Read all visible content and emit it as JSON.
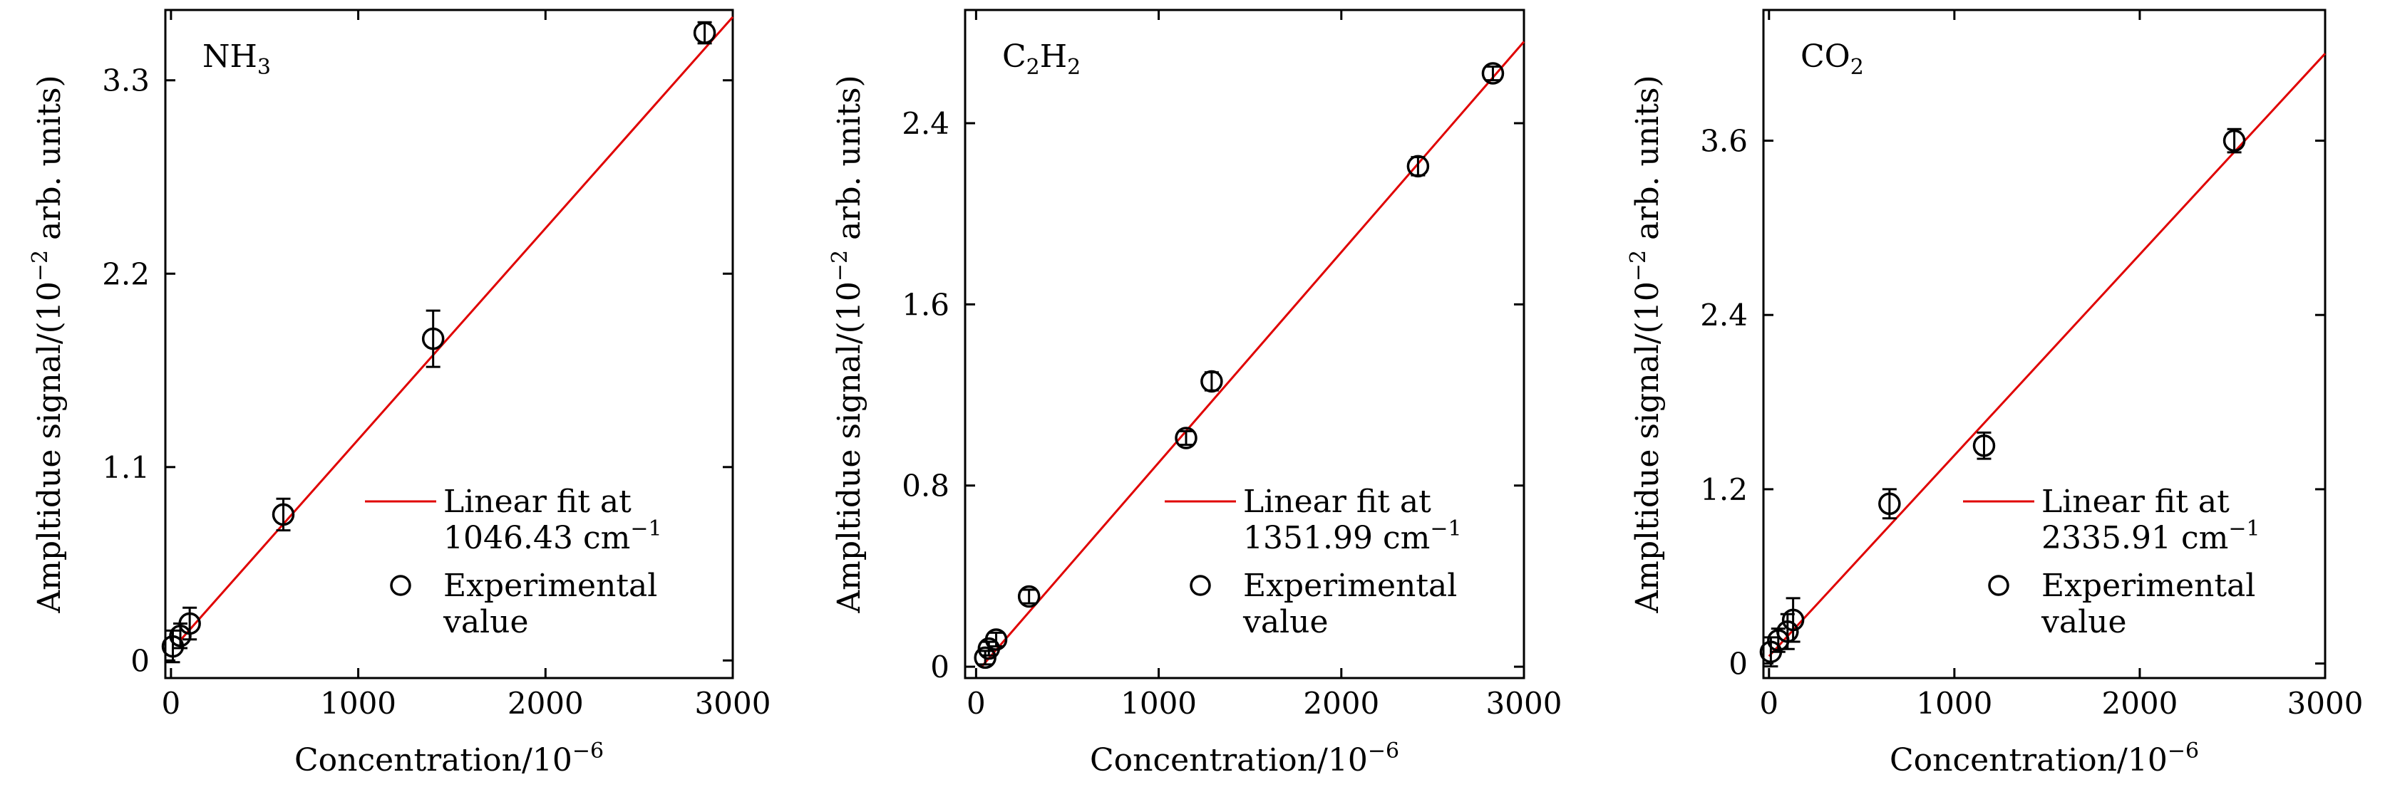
{
  "figure_label": "Three calibration plots",
  "chart_data": [
    {
      "type": "scatter",
      "gas": {
        "main": "NH",
        "sub": "3",
        "rest": ""
      },
      "xlabel": {
        "text": "Concentration/10",
        "sup": "−6"
      },
      "ylabel": {
        "text": "Ampltidue  signal/(10",
        "sup": "−2",
        "rest": " arb. units)"
      },
      "xlim": [
        -30,
        3000
      ],
      "ylim": [
        -0.1,
        3.7
      ],
      "xticks": [
        0,
        1000,
        2000,
        3000
      ],
      "xtick_labels": [
        "0",
        "1000",
        "2000",
        "3000"
      ],
      "yticks": [
        0,
        1.1,
        2.2,
        3.3
      ],
      "ytick_labels": [
        "0",
        "1.1",
        "2.2",
        "3.3"
      ],
      "points": [
        {
          "x": 10,
          "y": 0.08,
          "err": 0.09
        },
        {
          "x": 50,
          "y": 0.14,
          "err": 0.07
        },
        {
          "x": 100,
          "y": 0.21,
          "err": 0.09
        },
        {
          "x": 600,
          "y": 0.83,
          "err": 0.09
        },
        {
          "x": 1400,
          "y": 1.83,
          "err": 0.16
        },
        {
          "x": 2850,
          "y": 3.57,
          "err": 0.06
        }
      ],
      "fit": {
        "x0": 50,
        "y0": 0.115,
        "x1": 3000,
        "y1": 3.66
      },
      "legend": {
        "line1": "Linear fit at",
        "line2_value": "1046.43 cm",
        "line2_sup": "−1",
        "exp1": "Experimental",
        "exp2": "value"
      }
    },
    {
      "type": "scatter",
      "gas": {
        "main": "C",
        "sub": "2",
        "rest": "H",
        "sub2": "2"
      },
      "xlabel": {
        "text": "Concentration/10",
        "sup": "−6"
      },
      "ylabel": {
        "text": "Ampltidue  signal/(10",
        "sup": "−2",
        "rest": " arb. units)"
      },
      "xlim": [
        -60,
        3000
      ],
      "ylim": [
        -0.05,
        2.9
      ],
      "xticks": [
        0,
        1000,
        2000,
        3000
      ],
      "xtick_labels": [
        "0",
        "1000",
        "2000",
        "3000"
      ],
      "yticks": [
        0,
        0.8,
        1.6,
        2.4
      ],
      "ytick_labels": [
        "0",
        "0.8",
        "1.6",
        "2.4"
      ],
      "points": [
        {
          "x": 50,
          "y": 0.04,
          "err": 0.03
        },
        {
          "x": 70,
          "y": 0.08,
          "err": 0.03
        },
        {
          "x": 110,
          "y": 0.12,
          "err": 0.03
        },
        {
          "x": 290,
          "y": 0.31,
          "err": 0.03
        },
        {
          "x": 1150,
          "y": 1.01,
          "err": 0.03
        },
        {
          "x": 1290,
          "y": 1.26,
          "err": 0.04
        },
        {
          "x": 2420,
          "y": 2.21,
          "err": 0.04
        },
        {
          "x": 2830,
          "y": 2.62,
          "err": 0.03
        }
      ],
      "fit": {
        "x0": 30,
        "y0": 0.0,
        "x1": 3000,
        "y1": 2.76
      },
      "legend": {
        "line1": "Linear fit at",
        "line2_value": "1351.99 cm",
        "line2_sup": "−1",
        "exp1": "Experimental",
        "exp2": "value"
      }
    },
    {
      "type": "scatter",
      "gas": {
        "main": "CO",
        "sub": "2",
        "rest": ""
      },
      "xlabel": {
        "text": "Concentration/10",
        "sup": "−6"
      },
      "ylabel": {
        "text": "Ampltidue  signal/(10",
        "sup": "−2",
        "rest": " arb. units)"
      },
      "xlim": [
        -30,
        3000
      ],
      "ylim": [
        -0.1,
        4.5
      ],
      "xticks": [
        0,
        1000,
        2000,
        3000
      ],
      "xtick_labels": [
        "0",
        "1000",
        "2000",
        "3000"
      ],
      "yticks": [
        0,
        1.2,
        2.4,
        3.6
      ],
      "ytick_labels": [
        "0",
        "1.2",
        "2.4",
        "3.6"
      ],
      "points": [
        {
          "x": 10,
          "y": 0.08,
          "err": 0.1
        },
        {
          "x": 50,
          "y": 0.16,
          "err": 0.08
        },
        {
          "x": 100,
          "y": 0.22,
          "err": 0.12
        },
        {
          "x": 130,
          "y": 0.3,
          "err": 0.15
        },
        {
          "x": 650,
          "y": 1.1,
          "err": 0.1
        },
        {
          "x": 1160,
          "y": 1.5,
          "err": 0.09
        },
        {
          "x": 2510,
          "y": 3.6,
          "err": 0.08
        }
      ],
      "fit": {
        "x0": 0,
        "y0": 0.05,
        "x1": 3000,
        "y1": 4.2
      },
      "legend": {
        "line1": "Linear fit at",
        "line2_value": "2335.91 cm",
        "line2_sup": "−1",
        "exp1": "Experimental",
        "exp2": "value"
      }
    }
  ]
}
